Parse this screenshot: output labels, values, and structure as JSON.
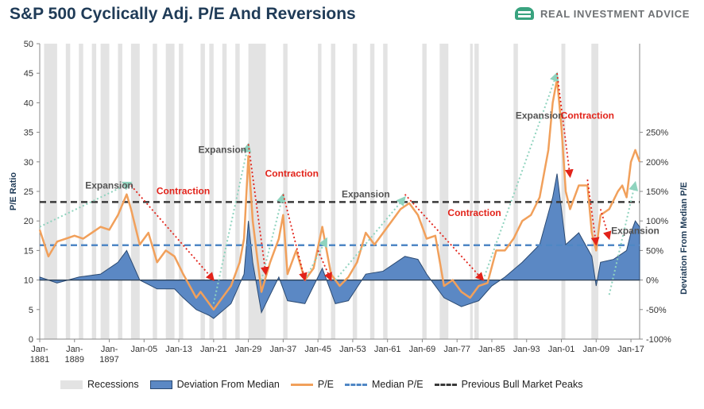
{
  "chart_data": {
    "type": "line",
    "title": "S&P 500 Cyclically Adj. P/E And Reversions",
    "brand": "REAL INVESTMENT ADVICE",
    "ylabel": "P/E Ratio",
    "ylabel_right": "Deviation From Median P/E",
    "ylim": [
      0,
      50
    ],
    "yticks": [
      "0",
      "5",
      "10",
      "15",
      "20",
      "25",
      "30",
      "35",
      "40",
      "45",
      "50"
    ],
    "ylim_right": [
      -100,
      400
    ],
    "yticks_right": [
      "-100%",
      "-50%",
      "0%",
      "50%",
      "100%",
      "150%",
      "200%",
      "250%"
    ],
    "x_range": [
      1881,
      2019
    ],
    "xtick_labels": [
      {
        "label": "Jan-\n1881",
        "year": 1881
      },
      {
        "label": "Jan-\n1889",
        "year": 1889
      },
      {
        "label": "Jan-\n1897",
        "year": 1897
      },
      {
        "label": "Jan-05",
        "year": 1905
      },
      {
        "label": "Jan-13",
        "year": 1913
      },
      {
        "label": "Jan-21",
        "year": 1921
      },
      {
        "label": "Jan-29",
        "year": 1929
      },
      {
        "label": "Jan-37",
        "year": 1937
      },
      {
        "label": "Jan-45",
        "year": 1945
      },
      {
        "label": "Jan-53",
        "year": 1953
      },
      {
        "label": "Jan-61",
        "year": 1961
      },
      {
        "label": "Jan-69",
        "year": 1969
      },
      {
        "label": "Jan-77",
        "year": 1977
      },
      {
        "label": "Jan-85",
        "year": 1985
      },
      {
        "label": "Jan-93",
        "year": 1993
      },
      {
        "label": "Jan-01",
        "year": 2001
      },
      {
        "label": "Jan-09",
        "year": 2009
      },
      {
        "label": "Jan-17",
        "year": 2017
      }
    ],
    "median_pe": 15.9,
    "previous_bull_market_peaks": 23.2,
    "pe_series": {
      "name": "P/E",
      "x": [
        1881,
        1883,
        1885,
        1887,
        1889,
        1891,
        1893,
        1895,
        1897,
        1899,
        1901,
        1902,
        1904,
        1906,
        1908,
        1910,
        1912,
        1914,
        1917,
        1918,
        1920,
        1921,
        1923,
        1925,
        1927,
        1928,
        1929,
        1930,
        1932,
        1934,
        1936,
        1937,
        1938,
        1940,
        1942,
        1944,
        1946,
        1948,
        1950,
        1952,
        1954,
        1956,
        1958,
        1960,
        1962,
        1964,
        1966,
        1968,
        1970,
        1972,
        1974,
        1976,
        1978,
        1980,
        1982,
        1984,
        1986,
        1988,
        1990,
        1992,
        1994,
        1996,
        1998,
        1999,
        2000,
        2001,
        2002,
        2003,
        2005,
        2007,
        2008,
        2009,
        2010,
        2012,
        2014,
        2015,
        2016,
        2017,
        2018,
        2019
      ],
      "values": [
        18.5,
        14,
        16.5,
        17,
        17.5,
        17,
        18,
        19,
        18.5,
        21,
        24.5,
        22,
        16,
        18,
        13,
        15,
        14,
        11,
        7,
        8,
        6,
        5,
        7,
        9,
        13,
        17,
        31,
        20,
        8,
        13,
        17,
        21,
        11,
        15,
        10,
        12,
        19,
        11,
        9,
        10.5,
        13,
        18,
        16,
        18,
        20,
        22,
        23,
        21,
        17,
        17.5,
        9,
        10,
        8,
        7,
        9,
        9.5,
        15,
        15,
        17,
        20,
        21,
        24,
        32,
        40,
        44,
        36,
        25,
        22,
        26,
        26,
        18,
        15,
        21,
        22,
        25,
        26,
        24,
        30,
        32,
        30
      ]
    },
    "deviation_series": {
      "name": "Deviation From Median",
      "x": [
        1881,
        1885,
        1890,
        1895,
        1899,
        1901,
        1904,
        1908,
        1912,
        1914,
        1917,
        1920,
        1921,
        1925,
        1928,
        1929,
        1930,
        1932,
        1936,
        1938,
        1942,
        1946,
        1949,
        1952,
        1956,
        1960,
        1965,
        1968,
        1970,
        1974,
        1978,
        1982,
        1985,
        1988,
        1992,
        1996,
        1999,
        2000,
        2002,
        2005,
        2008,
        2009,
        2010,
        2013,
        2016,
        2017,
        2018,
        2019
      ],
      "values": [
        5,
        -5,
        5,
        10,
        30,
        50,
        0,
        -15,
        -15,
        -30,
        -50,
        -60,
        -65,
        -40,
        10,
        100,
        30,
        -55,
        5,
        -35,
        -40,
        20,
        -40,
        -35,
        10,
        15,
        40,
        35,
        10,
        -30,
        -45,
        -35,
        -10,
        5,
        30,
        60,
        140,
        180,
        60,
        80,
        40,
        -10,
        30,
        35,
        50,
        80,
        100,
        90
      ]
    },
    "recession_years": [
      [
        1882,
        1885
      ],
      [
        1887,
        1888
      ],
      [
        1890,
        1891
      ],
      [
        1893,
        1894
      ],
      [
        1895,
        1897
      ],
      [
        1899,
        1900
      ],
      [
        1902,
        1904
      ],
      [
        1907,
        1908
      ],
      [
        1910,
        1912
      ],
      [
        1913,
        1914
      ],
      [
        1918,
        1919
      ],
      [
        1920,
        1921
      ],
      [
        1923,
        1924
      ],
      [
        1926,
        1927
      ],
      [
        1929,
        1933
      ],
      [
        1937,
        1938
      ],
      [
        1945,
        1945.8
      ],
      [
        1948,
        1949
      ],
      [
        1953,
        1954
      ],
      [
        1957,
        1958
      ],
      [
        1960,
        1961
      ],
      [
        1969,
        1970
      ],
      [
        1973,
        1975
      ],
      [
        1980,
        1980.6
      ],
      [
        1981,
        1982
      ],
      [
        1990,
        1991
      ],
      [
        2001,
        2001.9
      ],
      [
        2007.9,
        2009.5
      ]
    ],
    "annotations": [
      {
        "text": "Expansion",
        "color": "#555555",
        "label_year": 1897,
        "label_pe": 25.5
      },
      {
        "text": "Contraction",
        "color": "#e2231a",
        "label_year": 1914,
        "label_pe": 24.5
      },
      {
        "text": "Expansion",
        "color": "#555555",
        "label_year": 1923,
        "label_pe": 31.5
      },
      {
        "text": "Contraction",
        "color": "#e2231a",
        "label_year": 1939,
        "label_pe": 27.5
      },
      {
        "text": "Expansion",
        "color": "#555555",
        "label_year": 1956,
        "label_pe": 24
      },
      {
        "text": "Contraction",
        "color": "#e2231a",
        "label_year": 1981,
        "label_pe": 20.8
      },
      {
        "text": "Expansion",
        "color": "#555555",
        "label_year": 1996,
        "label_pe": 37.3
      },
      {
        "text": "Contraction",
        "color": "#e2231a",
        "label_year": 2007,
        "label_pe": 37.3
      },
      {
        "text": "Expansion",
        "color": "#555555",
        "label_year": 2018,
        "label_pe": 17.8
      }
    ],
    "expansion_arrows": [
      [
        1881,
        19,
        1902,
        26.5
      ],
      [
        1921,
        6,
        1929,
        33
      ],
      [
        1932,
        10,
        1937,
        24.5
      ],
      [
        1942,
        10,
        1947,
        17
      ],
      [
        1949,
        10,
        1965,
        24
      ],
      [
        1983,
        10,
        2000,
        45
      ],
      [
        2012,
        7.5,
        2018,
        26.5
      ]
    ],
    "contraction_arrows": [
      [
        1902,
        26,
        1921,
        10
      ],
      [
        1929,
        33,
        1933,
        11
      ],
      [
        1937,
        24.5,
        1942,
        10
      ],
      [
        1945,
        15,
        1948,
        10
      ],
      [
        1965,
        24.5,
        1983,
        10
      ],
      [
        2000,
        45,
        2003,
        27.5
      ],
      [
        2007,
        27,
        2009,
        16
      ],
      [
        2010,
        22,
        2012,
        17
      ]
    ],
    "colors": {
      "pe": "#f1a05b",
      "deviation_fill": "#5b88c4",
      "deviation_line": "#2b4a72",
      "median": "#4f87c5",
      "bull": "#3a3a3a",
      "recession": "#e3e3e3",
      "expansion_arrow": "#8fd3be",
      "contraction_arrow": "#e2231a"
    },
    "legend": [
      "Recessions",
      "Deviation From Median",
      "P/E",
      "Median P/E",
      "Previous Bull Market Peaks"
    ],
    "grid": false,
    "legend_position": "bottom"
  }
}
